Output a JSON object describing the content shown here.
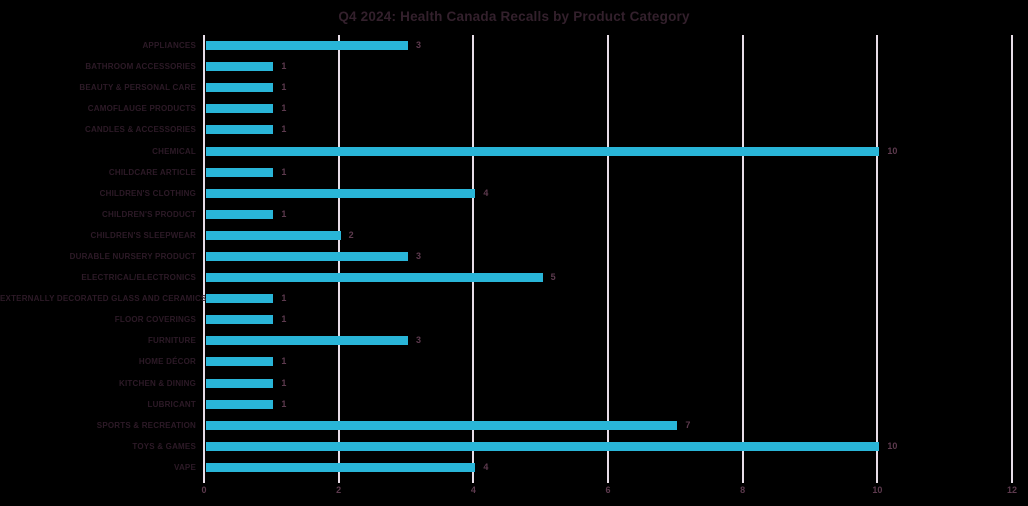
{
  "title": "Q4 2024: Health Canada Recalls by Product Category",
  "colors": {
    "background": "#000000",
    "bar": "#29b5d8",
    "title_text": "#33202c",
    "category_text": "#2d1a27",
    "value_text": "#5d3a4e",
    "gridline": "#e7dde7"
  },
  "chart_data": {
    "type": "bar",
    "orientation": "horizontal",
    "title": "Q4 2024: Health Canada Recalls by Product Category",
    "categories": [
      "APPLIANCES",
      "BATHROOM ACCESSORIES",
      "BEAUTY & PERSONAL CARE",
      "CAMOFLAUGE PRODUCTS",
      "CANDLES & ACCESSORIES",
      "CHEMICAL",
      "CHILDCARE ARTICLE",
      "CHILDREN'S CLOTHING",
      "CHILDREN'S PRODUCT",
      "CHILDREN'S SLEEPWEAR",
      "DURABLE NURSERY PRODUCT",
      "ELECTRICAL/ELECTRONICS",
      "EXTERNALLY DECORATED GLASS AND CERAMICS",
      "FLOOR COVERINGS",
      "FURNITURE",
      "HOME DÉCOR",
      "KITCHEN & DINING",
      "LUBRICANT",
      "SPORTS & RECREATION",
      "TOYS & GAMES",
      "VAPE"
    ],
    "values": [
      3,
      1,
      1,
      1,
      1,
      10,
      1,
      4,
      1,
      2,
      3,
      5,
      1,
      1,
      3,
      1,
      1,
      1,
      7,
      10,
      4
    ],
    "data_labels": [
      3,
      1,
      1,
      1,
      1,
      10,
      1,
      4,
      1,
      2,
      3,
      5,
      1,
      1,
      3,
      1,
      1,
      1,
      7,
      10,
      4
    ],
    "xlabel": "",
    "ylabel": "",
    "x_ticks": [
      0,
      2,
      4,
      6,
      8,
      10,
      12
    ],
    "xlim": [
      0,
      12
    ],
    "grid": "vertical",
    "legend": "none"
  }
}
